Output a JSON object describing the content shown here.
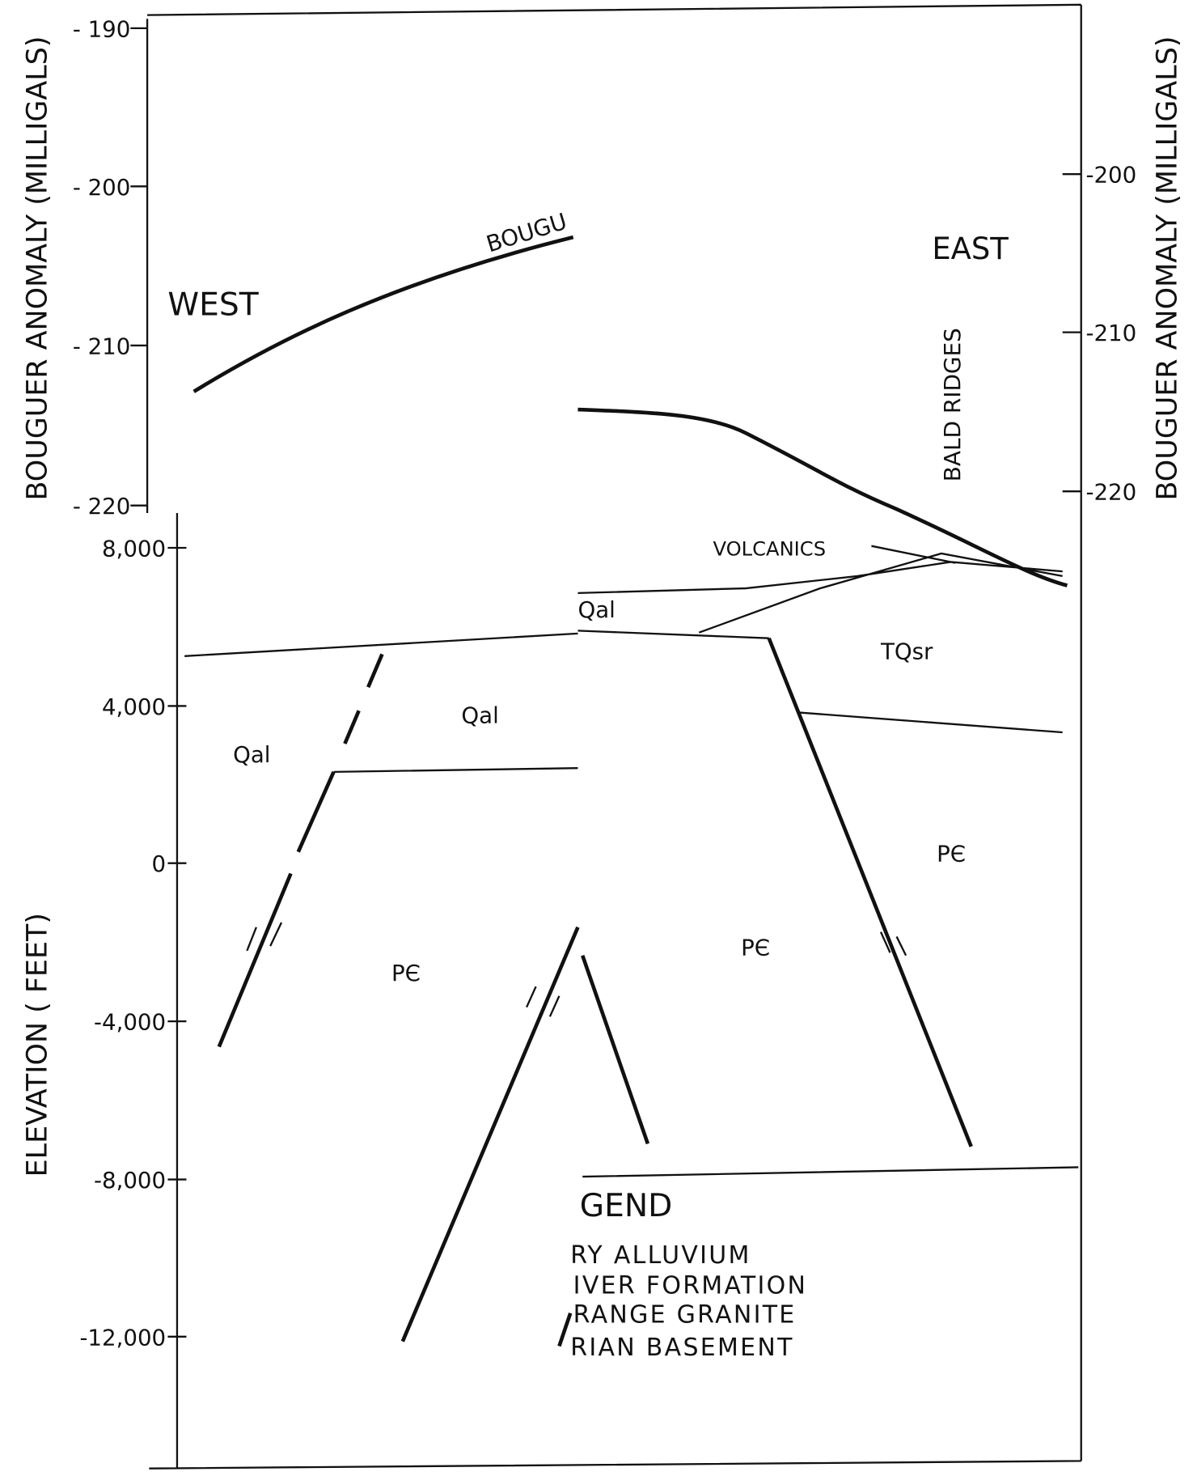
{
  "axes": {
    "upper_left": {
      "title": "BOUGUER ANOMALY (MILLIGALS)",
      "ticks": [
        "- 190",
        "- 200",
        "- 210",
        "- 220"
      ]
    },
    "upper_right": {
      "title": "BOUGUER ANOMALY (MILLIGALS)",
      "ticks": [
        "-200",
        "-210",
        "-220"
      ]
    },
    "lower_left": {
      "title": "ELEVATION ( FEET)",
      "ticks": [
        "8,000",
        "4,000",
        "0",
        "-4,000",
        "-8,000",
        "-12,000"
      ]
    }
  },
  "labels": {
    "west": "WEST",
    "east": "EAST",
    "curve": "BOUGU",
    "ridges": "BALD RIDGES",
    "volcanics": "VOLCANICS",
    "units": [
      "Qal",
      "TQsr",
      "Qal",
      "Qal",
      "PЄ",
      "PЄ",
      "PЄ"
    ]
  },
  "legend": {
    "title": "GEND",
    "items": [
      "RY ALLUVIUM",
      "IVER FORMATION",
      "RANGE GRANITE",
      "RIAN BASEMENT"
    ]
  }
}
